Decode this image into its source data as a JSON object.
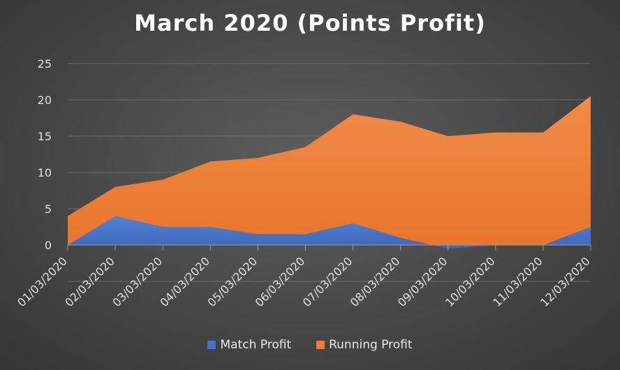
{
  "chart_data": {
    "type": "area",
    "title": "March 2020 (Points Profit)",
    "categories": [
      "01/03/2020",
      "02/03/2020",
      "03/03/2020",
      "04/03/2020",
      "05/03/2020",
      "06/03/2020",
      "07/03/2020",
      "08/03/2020",
      "09/03/2020",
      "10/03/2020",
      "11/03/2020",
      "12/03/2020"
    ],
    "series": [
      {
        "name": "Match Profit",
        "color": "#4472c4",
        "values": [
          0,
          4,
          2.5,
          2.5,
          1.5,
          1.5,
          3,
          1,
          -0.5,
          0,
          0,
          2.5
        ]
      },
      {
        "name": "Running Profit",
        "color": "#ed7d31",
        "values": [
          4,
          8,
          9,
          11.5,
          12,
          13.5,
          18,
          17,
          15,
          15.5,
          15.5,
          20.5
        ]
      }
    ],
    "yticks": [
      0,
      5,
      10,
      15,
      20,
      25
    ],
    "ylim": [
      -5,
      25
    ],
    "grid": true,
    "legend": "bottom"
  }
}
